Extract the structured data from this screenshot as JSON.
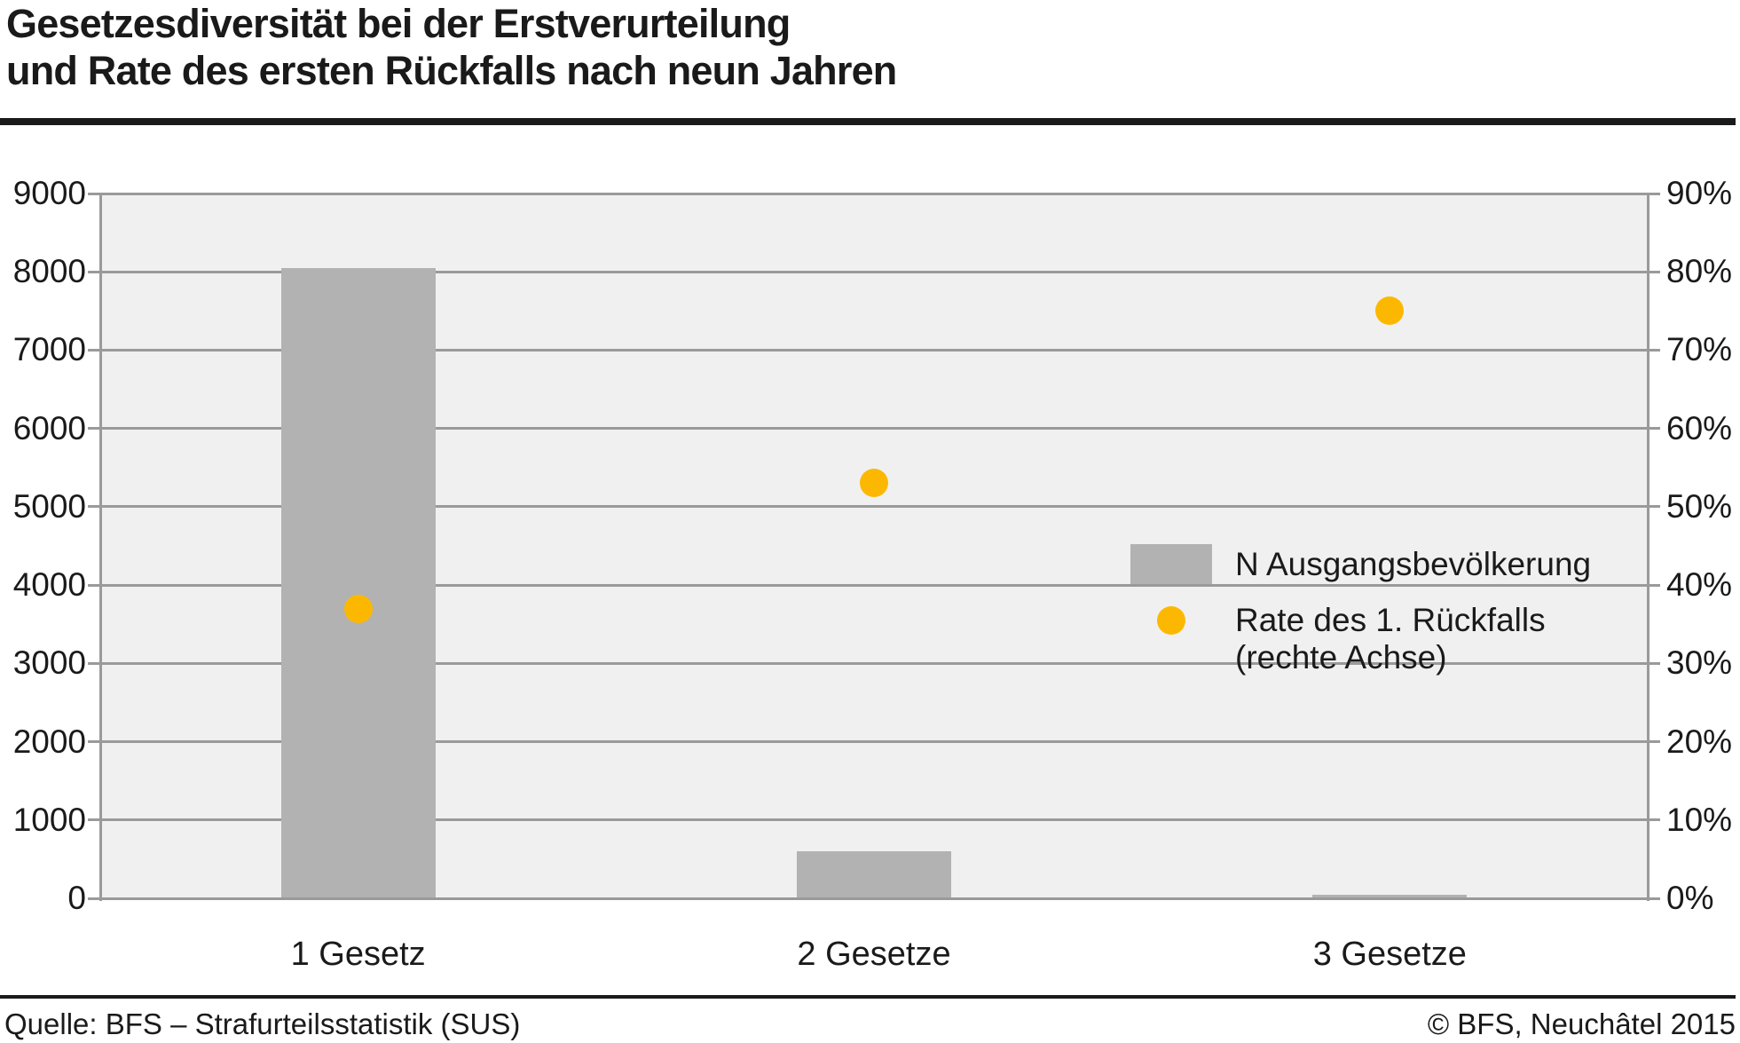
{
  "title": {
    "line1": "Gesetzesdiversität bei der Erstverurteilung",
    "line2": "und Rate des ersten Rückfalls nach neun Jahren"
  },
  "legend": {
    "bar_label": "N Ausgangsbevölkerung",
    "marker_label_line1": "Rate des 1. Rückfalls",
    "marker_label_line2": "(rechte Achse)"
  },
  "footer": {
    "source": "Quelle: BFS – Strafurteilsstatistik (SUS)",
    "copyright": "© BFS, Neuchâtel 2015"
  },
  "colors": {
    "bar": "#b2b2b2",
    "marker": "#fcb800",
    "plot_background": "#f0f0f0",
    "gridline": "#9a9a9a",
    "text": "#1a1a1a",
    "rule": "#1a1a1a"
  },
  "chart_data": {
    "type": "bar",
    "title": "Gesetzesdiversität bei der Erstverurteilung und Rate des ersten Rückfalls nach neun Jahren",
    "categories": [
      "1 Gesetz",
      "2 Gesetze",
      "3 Gesetze"
    ],
    "series": [
      {
        "name": "N Ausgangsbevölkerung",
        "type": "bar",
        "axis": "left",
        "values": [
          8050,
          600,
          50
        ],
        "color": "#b2b2b2"
      },
      {
        "name": "Rate des 1. Rückfalls (rechte Achse)",
        "type": "scatter",
        "axis": "right",
        "values": [
          37,
          53,
          75
        ],
        "unit": "%",
        "color": "#fcb800"
      }
    ],
    "left_axis": {
      "min": 0,
      "max": 9000,
      "step": 1000,
      "tick_labels": [
        "9000",
        "8000",
        "7000",
        "6000",
        "5000",
        "4000",
        "3000",
        "2000",
        "1000",
        "0"
      ]
    },
    "right_axis": {
      "min": 0,
      "max": 90,
      "step": 10,
      "unit": "%",
      "tick_labels": [
        "90%",
        "80%",
        "70%",
        "60%",
        "50%",
        "40%",
        "30%",
        "20%",
        "10%",
        "0%"
      ]
    },
    "grid": true,
    "legend_position": "inside right",
    "plot_background": "#f0f0f0"
  }
}
